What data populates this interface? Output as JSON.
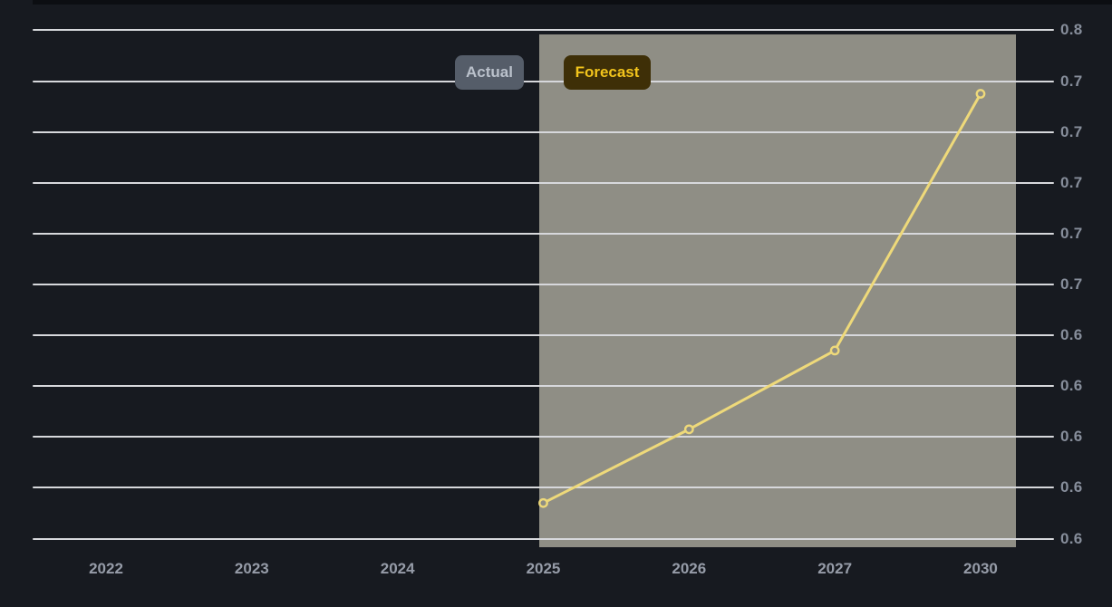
{
  "page": {
    "background_color": "#171a20"
  },
  "legend": {
    "actual_label": "Actual",
    "forecast_label": "Forecast"
  },
  "colors": {
    "background": "#171a20",
    "top_strip": "#0c0e12",
    "gridline": "#d7d8dc",
    "forecast_region_fill": "#8f8e85",
    "line": "#eed97a",
    "marker_fill": "#8f8e85",
    "actual_badge_bg": "#555d69",
    "actual_badge_text": "#bac1cb",
    "forecast_badge_bg": "#3e2f07",
    "forecast_badge_text": "#f2c41c",
    "y_label_text": "#878e9b",
    "x_label_text": "#969ca8"
  },
  "chart_data": {
    "type": "line",
    "title": "",
    "xlabel": "",
    "ylabel": "",
    "grid": true,
    "legend_position": "top-center",
    "x_tick_labels": [
      "2022",
      "2023",
      "2024",
      "2025",
      "2026",
      "2027",
      "2030"
    ],
    "y_tick_labels": [
      "0.8",
      "0.7",
      "0.7",
      "0.7",
      "0.7",
      "0.7",
      "0.6",
      "0.6",
      "0.6",
      "0.6",
      "0.6"
    ],
    "y_tick_values": [
      0.76,
      0.74,
      0.72,
      0.7,
      0.68,
      0.66,
      0.64,
      0.62,
      0.6,
      0.58,
      0.56
    ],
    "ylim": [
      0.555,
      0.765
    ],
    "series": [
      {
        "name": "Forecast",
        "color": "#eed97a",
        "points": [
          {
            "x": "2025",
            "y": 0.574
          },
          {
            "x": "2026",
            "y": 0.603
          },
          {
            "x": "2027",
            "y": 0.634
          },
          {
            "x": "2030",
            "y": 0.735
          }
        ]
      }
    ],
    "forecast_region": {
      "x_start": "2025",
      "x_end": "2030"
    },
    "annotations": [
      "Actual",
      "Forecast"
    ]
  }
}
